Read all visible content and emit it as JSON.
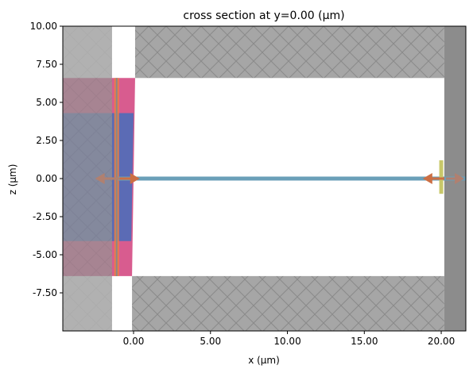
{
  "chart_data": {
    "type": "cross-section",
    "title": "cross section at y=0.00 (μm)",
    "xlabel": "x (μm)",
    "ylabel": "z (μm)",
    "xlim": [
      -4.6,
      21.6
    ],
    "ylim": [
      -10.0,
      10.0
    ],
    "x_ticks": [
      0.0,
      5.0,
      10.0,
      15.0,
      20.0
    ],
    "x_tick_labels": [
      "0.00",
      "5.00",
      "10.00",
      "15.00",
      "20.00"
    ],
    "y_ticks": [
      10.0,
      7.5,
      5.0,
      2.5,
      0.0,
      -2.5,
      -5.0,
      -7.5
    ],
    "y_tick_labels": [
      "10.00",
      "7.50",
      "5.00",
      "2.50",
      "0.00",
      "-2.50",
      "-5.00",
      "-7.50"
    ],
    "grid": false,
    "colors": {
      "pml": "#a6a6a6",
      "pml_hatch": "#7f7f7f",
      "pml_dark": "#8c8c8c",
      "cladding": "#d85c8f",
      "core": "#5b6bb5",
      "source_band": "#888888",
      "source_line": "#f07f40",
      "waveguide": "#6a9fb8",
      "monitor": "#c8c86a",
      "arrow": "#cc6f44",
      "arrow_gray": "#b08070"
    },
    "regions": [
      {
        "name": "pml-top",
        "x": [
          0.1,
          20.2
        ],
        "z": [
          6.6,
          10.0
        ]
      },
      {
        "name": "pml-bottom",
        "x": [
          -0.1,
          20.2
        ],
        "z": [
          -10.0,
          -6.4
        ]
      },
      {
        "name": "pml-right",
        "x": [
          20.2,
          21.6
        ],
        "z": [
          -10.0,
          10.0
        ]
      },
      {
        "name": "pml-left",
        "x": [
          -4.6,
          -1.4
        ],
        "z": [
          -10.0,
          10.0
        ]
      },
      {
        "name": "cladding",
        "x": [
          -4.6,
          0.0
        ],
        "z": [
          -6.4,
          6.6
        ]
      },
      {
        "name": "taper-core",
        "x": [
          -4.6,
          0.0
        ],
        "z": [
          -4.1,
          4.3
        ]
      }
    ],
    "waveguide": {
      "x": [
        -1.0,
        21.6
      ],
      "z": 0.0
    },
    "source": {
      "x": -1.1,
      "z": [
        -6.4,
        6.6
      ]
    },
    "monitor": {
      "x": 20.0,
      "z": [
        -1.0,
        1.2
      ]
    },
    "arrows": [
      {
        "x_from": -2.5,
        "x_to": -0.9,
        "direction": "left"
      },
      {
        "x_from": -0.9,
        "x_to": 0.4,
        "direction": "right"
      },
      {
        "x_from": 18.8,
        "x_to": 20.2,
        "direction": "left"
      },
      {
        "x_from": 20.3,
        "x_to": 21.5,
        "direction": "right"
      }
    ]
  }
}
